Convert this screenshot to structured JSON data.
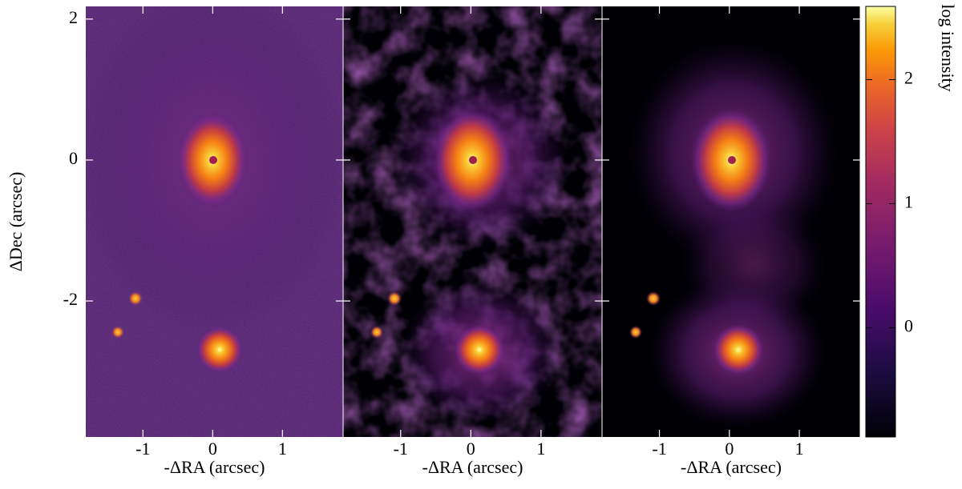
{
  "chart_data": {
    "type": "image",
    "panels": [
      {
        "xlabel": "-ΔRA (arcsec)"
      },
      {
        "xlabel": "-ΔRA (arcsec)"
      },
      {
        "xlabel": "-ΔRA (arcsec)"
      }
    ],
    "ylabel": "ΔDec (arcsec)",
    "xlim": [
      -1.82,
      1.87
    ],
    "ylim": [
      -3.93,
      2.18
    ],
    "xticks": [
      -1,
      0,
      1
    ],
    "yticks": [
      2,
      0,
      -2
    ],
    "colorbar": {
      "label": "log intensity",
      "lim": [
        -0.88,
        2.59
      ],
      "ticks": [
        0,
        1,
        2
      ]
    }
  }
}
